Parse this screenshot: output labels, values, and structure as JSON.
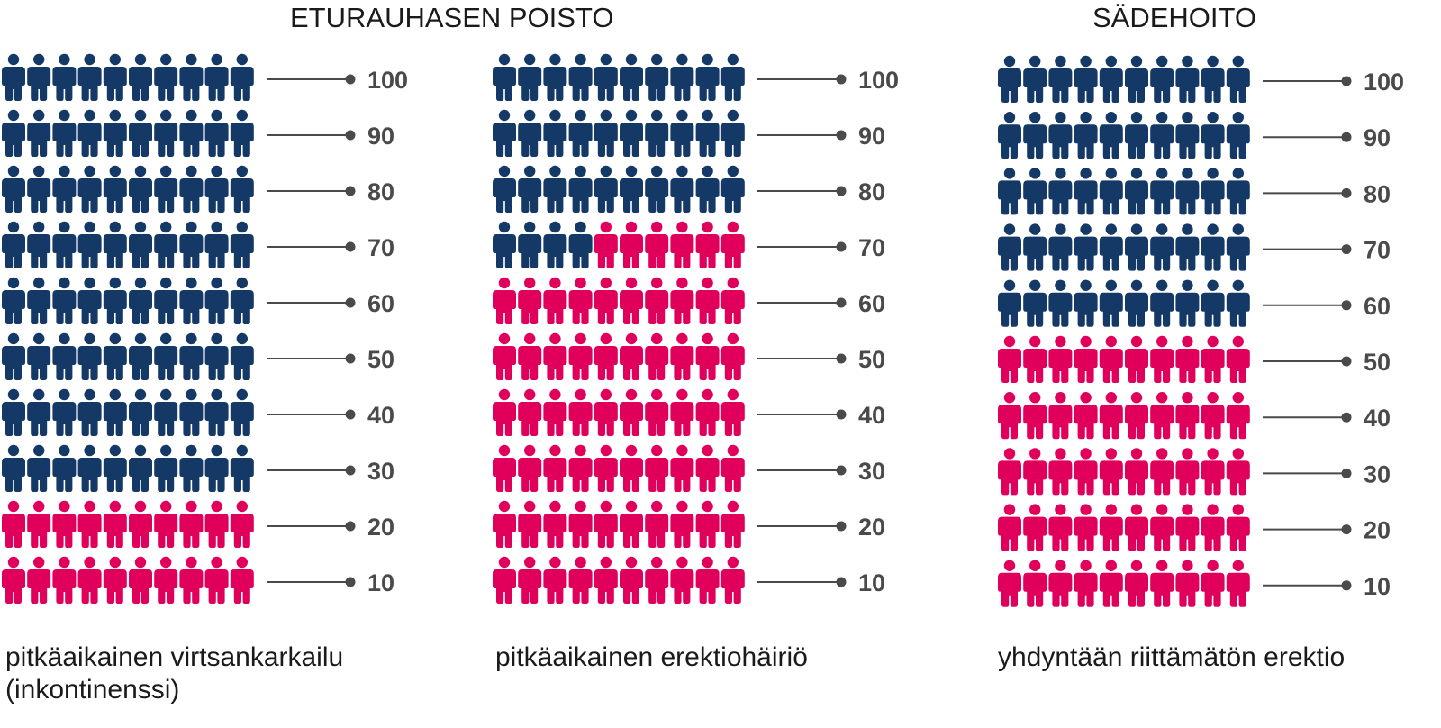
{
  "headers": [
    {
      "text": "ETURAUHASEN POISTO"
    },
    {
      "text": "SÄDEHOITO"
    }
  ],
  "colors": {
    "unaffected": "#143966",
    "affected": "#e0005c",
    "line": "#4a4a4a"
  },
  "icon_name": "person-icon",
  "chart_data": [
    {
      "type": "pictogram",
      "caption": "pitkäaikainen virtsankarkailu (inkontinenssi)",
      "total": 100,
      "per_row": 10,
      "affected": 20,
      "ticks": [
        "100",
        "90",
        "80",
        "70",
        "60",
        "50",
        "40",
        "30",
        "20",
        "10"
      ]
    },
    {
      "type": "pictogram",
      "caption": "pitkäaikainen erektiohäiriö",
      "total": 100,
      "per_row": 10,
      "affected": 66,
      "ticks": [
        "100",
        "90",
        "80",
        "70",
        "60",
        "50",
        "40",
        "30",
        "20",
        "10"
      ]
    },
    {
      "type": "pictogram",
      "caption": "yhdyntään riittämätön erektio",
      "total": 100,
      "per_row": 10,
      "affected": 50,
      "ticks": [
        "100",
        "90",
        "80",
        "70",
        "60",
        "50",
        "40",
        "30",
        "20",
        "10"
      ]
    }
  ]
}
